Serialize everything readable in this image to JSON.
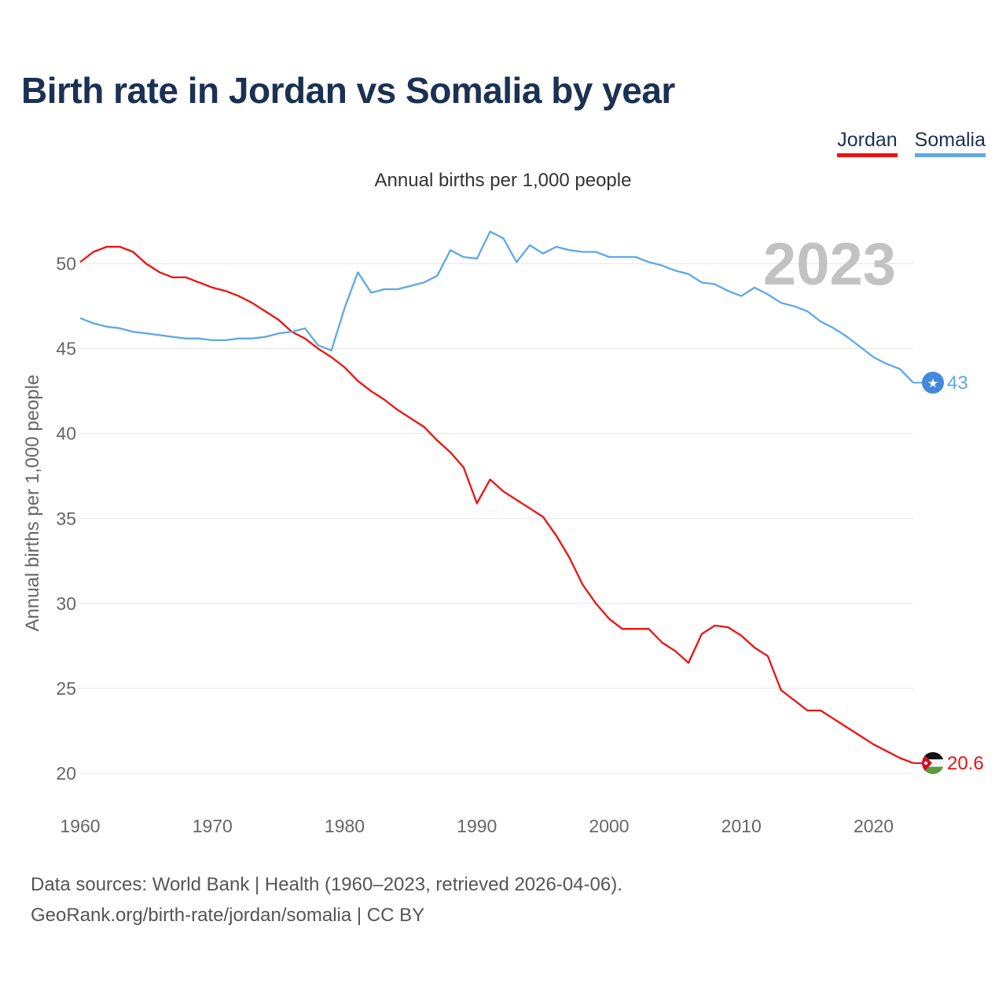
{
  "title": "Birth rate in Jordan vs Somalia by year",
  "subtitle": "Annual births per 1,000 people",
  "legend": [
    {
      "name": "Jordan",
      "color": "#ee1111"
    },
    {
      "name": "Somalia",
      "color": "#5ea8e6"
    }
  ],
  "year_display": "2023",
  "source": {
    "line1": "Data sources: World Bank | Health (1960–2023, retrieved 2026-04-06).",
    "line2": "GeoRank.org/birth-rate/jordan/somalia | CC BY"
  },
  "chart_data": {
    "type": "line",
    "title": "Birth rate in Jordan vs Somalia by year",
    "ylabel": "Annual births per 1,000 people",
    "xlabel": "",
    "xlim": [
      1960,
      2023
    ],
    "ylim": [
      18.7,
      53.5
    ],
    "xticks": [
      1960,
      1970,
      1980,
      1990,
      2000,
      2010,
      2020
    ],
    "yticks": [
      20,
      25,
      30,
      35,
      40,
      45,
      50
    ],
    "grid": true,
    "legend_position": "top-right",
    "x": [
      1960,
      1961,
      1962,
      1963,
      1964,
      1965,
      1966,
      1967,
      1968,
      1969,
      1970,
      1971,
      1972,
      1973,
      1974,
      1975,
      1976,
      1977,
      1978,
      1979,
      1980,
      1981,
      1982,
      1983,
      1984,
      1985,
      1986,
      1987,
      1988,
      1989,
      1990,
      1991,
      1992,
      1993,
      1994,
      1995,
      1996,
      1997,
      1998,
      1999,
      2000,
      2001,
      2002,
      2003,
      2004,
      2005,
      2006,
      2007,
      2008,
      2009,
      2010,
      2011,
      2012,
      2013,
      2014,
      2015,
      2016,
      2017,
      2018,
      2019,
      2020,
      2021,
      2022,
      2023
    ],
    "series": [
      {
        "name": "Jordan",
        "color": "#ee1111",
        "end_label": "20.6",
        "values": [
          50.1,
          50.7,
          51.0,
          51.0,
          50.7,
          50.0,
          49.5,
          49.2,
          49.2,
          48.9,
          48.6,
          48.4,
          48.1,
          47.7,
          47.2,
          46.7,
          46.0,
          45.6,
          45.0,
          44.5,
          43.9,
          43.1,
          42.5,
          42.0,
          41.4,
          40.9,
          40.4,
          39.6,
          38.9,
          38.0,
          35.9,
          37.3,
          36.6,
          36.1,
          35.6,
          35.1,
          34.0,
          32.7,
          31.1,
          30.0,
          29.1,
          28.5,
          28.5,
          28.5,
          27.7,
          27.2,
          26.5,
          28.2,
          28.7,
          28.6,
          28.1,
          27.4,
          26.9,
          24.9,
          24.3,
          23.7,
          23.7,
          23.2,
          22.7,
          22.2,
          21.7,
          21.3,
          20.9,
          20.6
        ]
      },
      {
        "name": "Somalia",
        "color": "#5ea8e6",
        "end_label": "43",
        "values": [
          46.8,
          46.5,
          46.3,
          46.2,
          46.0,
          45.9,
          45.8,
          45.7,
          45.6,
          45.6,
          45.5,
          45.5,
          45.6,
          45.6,
          45.7,
          45.9,
          46.0,
          46.2,
          45.2,
          44.9,
          47.4,
          49.5,
          48.3,
          48.5,
          48.5,
          48.7,
          48.9,
          49.3,
          50.8,
          50.4,
          50.3,
          51.9,
          51.5,
          50.1,
          51.1,
          50.6,
          51.0,
          50.8,
          50.7,
          50.7,
          50.4,
          50.4,
          50.4,
          50.1,
          49.9,
          49.6,
          49.4,
          48.9,
          48.8,
          48.4,
          48.1,
          48.6,
          48.2,
          47.7,
          47.5,
          47.2,
          46.6,
          46.2,
          45.7,
          45.1,
          44.5,
          44.1,
          43.8,
          43.0
        ]
      }
    ]
  }
}
